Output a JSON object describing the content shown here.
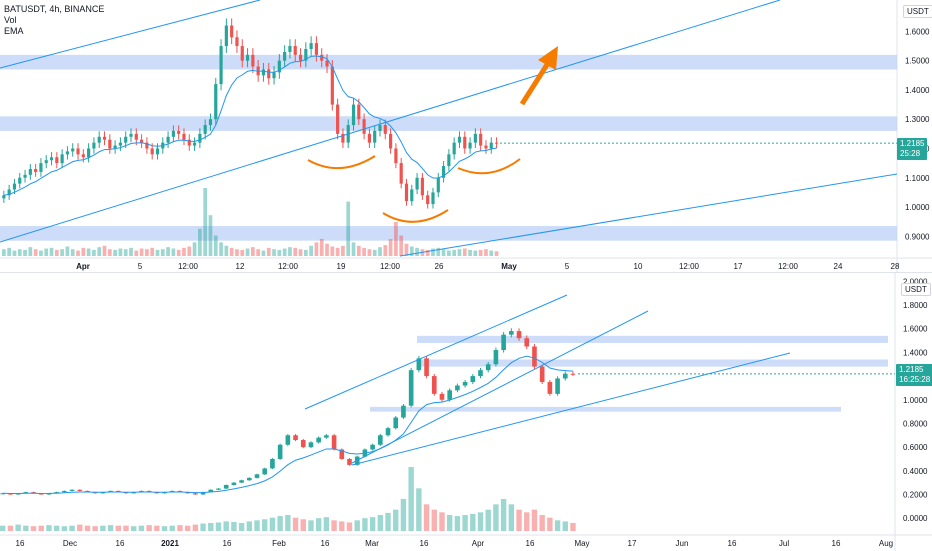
{
  "top_legend": {
    "symbol": "BATUSDT, 4h, BINANCE",
    "vol": "Vol",
    "ema": "EMA"
  },
  "top_axis_unit": "USDT",
  "bottom_axis_unit": "USDT",
  "top_price_tag": {
    "price": "1.2185",
    "timer": "25:28"
  },
  "bottom_price_tag": {
    "price": "1.2185",
    "timer": "16:25:28"
  },
  "colors": {
    "up": "#26a69a",
    "down": "#ef5350",
    "zone": "#bbd0f7",
    "trend": "#2196f3",
    "ema": "#2196f3",
    "arrow": "#f57c00",
    "pattern": "#f57c00"
  },
  "chart_data": [
    {
      "type": "candlestick",
      "title": "BATUSDT, 4h, BINANCE",
      "interval": "4h",
      "indicators": [
        "Vol",
        "EMA"
      ],
      "y_ticks": [
        "1.6000",
        "1.5000",
        "1.4000",
        "1.3000",
        "1.2000",
        "1.1000",
        "1.0000",
        "0.9000"
      ],
      "y_tick_values": [
        1.6,
        1.5,
        1.4,
        1.3,
        1.2,
        1.1,
        1.0,
        0.9
      ],
      "ylim": [
        0.86,
        1.68
      ],
      "x_ticks": [
        "Apr",
        "5",
        "12:00",
        "12",
        "12:00",
        "19",
        "12:00",
        "26",
        "May",
        "5",
        "10",
        "12:00",
        "17",
        "12:00",
        "24",
        "28"
      ],
      "x_tick_bold": [
        "Apr",
        "May"
      ],
      "last_price": 1.2185,
      "close_series": [
        1.04,
        1.06,
        1.08,
        1.1,
        1.11,
        1.13,
        1.12,
        1.15,
        1.16,
        1.17,
        1.15,
        1.18,
        1.19,
        1.2,
        1.18,
        1.17,
        1.2,
        1.22,
        1.24,
        1.23,
        1.2,
        1.21,
        1.22,
        1.24,
        1.25,
        1.23,
        1.22,
        1.2,
        1.18,
        1.2,
        1.22,
        1.24,
        1.26,
        1.25,
        1.23,
        1.21,
        1.22,
        1.25,
        1.28,
        1.3,
        1.42,
        1.55,
        1.62,
        1.58,
        1.55,
        1.5,
        1.52,
        1.48,
        1.45,
        1.47,
        1.44,
        1.46,
        1.5,
        1.53,
        1.55,
        1.52,
        1.5,
        1.54,
        1.56,
        1.52,
        1.5,
        1.48,
        1.35,
        1.25,
        1.22,
        1.28,
        1.35,
        1.3,
        1.25,
        1.22,
        1.26,
        1.28,
        1.25,
        1.2,
        1.15,
        1.08,
        1.02,
        1.06,
        1.1,
        1.04,
        1.01,
        1.05,
        1.1,
        1.14,
        1.18,
        1.22,
        1.24,
        1.2,
        1.22,
        1.25,
        1.21,
        1.2,
        1.22,
        1.2185
      ],
      "zones": [
        [
          1.47,
          1.52
        ],
        [
          1.26,
          1.31
        ],
        [
          0.885,
          0.935
        ]
      ],
      "volume_series": [
        1,
        1.2,
        0.8,
        1,
        0.9,
        1.3,
        1,
        0.8,
        1.1,
        1.2,
        0.9,
        1,
        1.4,
        1,
        0.8,
        1.2,
        1.1,
        0.9,
        1.3,
        1.5,
        1,
        0.9,
        1.1,
        1,
        1.2,
        0.8,
        1.1,
        1,
        1.2,
        0.9,
        1,
        1.3,
        1.1,
        0.9,
        1.2,
        1.4,
        2,
        4,
        10,
        6,
        3,
        2,
        1.5,
        1.2,
        1,
        0.9,
        1.1,
        1.3,
        1,
        0.8,
        1.2,
        1,
        0.9,
        1.1,
        1.3,
        1.2,
        1,
        0.9,
        1.5,
        2,
        2.5,
        1.8,
        1.4,
        1.2,
        1.5,
        8,
        2,
        1.5,
        1.2,
        1,
        0.9,
        1.3,
        1.6,
        2.5,
        5,
        3,
        1.8,
        1.4,
        1.2,
        1,
        0.9,
        1.1,
        1.2,
        1,
        0.8,
        0.9,
        1,
        1.1,
        0.9,
        0.8,
        0.9,
        1,
        0.8,
        0.7
      ]
    },
    {
      "type": "candlestick",
      "interval": "1D",
      "indicators": [
        "Vol",
        "EMA"
      ],
      "y_ticks": [
        "2.0000",
        "1.8000",
        "1.6000",
        "1.4000",
        "1.2000",
        "1.0000",
        "0.8000",
        "0.6000",
        "0.4000",
        "0.2000",
        "0.0000"
      ],
      "y_tick_values": [
        2.0,
        1.8,
        1.6,
        1.4,
        1.2,
        1.0,
        0.8,
        0.6,
        0.4,
        0.2,
        0.0
      ],
      "ylim": [
        -0.1,
        2.02
      ],
      "x_ticks": [
        "16",
        "Dec",
        "16",
        "2021",
        "16",
        "Feb",
        "16",
        "Mar",
        "16",
        "Apr",
        "16",
        "May",
        "17",
        "Jun",
        "16",
        "Jul",
        "16",
        "Aug"
      ],
      "x_tick_bold": [
        "2021"
      ],
      "last_price": 1.2185,
      "close_series": [
        0.21,
        0.2,
        0.21,
        0.22,
        0.21,
        0.2,
        0.21,
        0.22,
        0.23,
        0.24,
        0.23,
        0.22,
        0.21,
        0.22,
        0.23,
        0.22,
        0.21,
        0.22,
        0.23,
        0.22,
        0.21,
        0.22,
        0.23,
        0.22,
        0.21,
        0.2,
        0.22,
        0.24,
        0.25,
        0.28,
        0.3,
        0.32,
        0.34,
        0.37,
        0.42,
        0.5,
        0.62,
        0.7,
        0.66,
        0.6,
        0.64,
        0.68,
        0.7,
        0.58,
        0.5,
        0.45,
        0.52,
        0.58,
        0.62,
        0.7,
        0.76,
        0.85,
        0.95,
        1.25,
        1.35,
        1.2,
        1.05,
        1.0,
        1.08,
        1.12,
        1.15,
        1.2,
        1.25,
        1.3,
        1.42,
        1.55,
        1.58,
        1.52,
        1.45,
        1.28,
        1.15,
        1.05,
        1.18,
        1.22,
        1.2185
      ],
      "zones": [
        [
          1.48,
          1.54
        ],
        [
          1.28,
          1.34
        ],
        [
          0.9,
          0.94
        ]
      ],
      "volume_series": [
        1,
        1,
        1.2,
        1,
        0.9,
        1,
        1.1,
        1,
        0.9,
        1,
        1.2,
        1,
        0.9,
        1,
        1.1,
        1,
        1,
        0.9,
        1,
        1.1,
        1,
        0.9,
        1,
        1.1,
        1,
        1.2,
        1.4,
        1.5,
        1.6,
        1.8,
        1.7,
        1.5,
        1.8,
        2,
        2.2,
        2.5,
        2.8,
        3,
        2.5,
        2.2,
        2,
        2.4,
        2.6,
        2,
        1.8,
        1.6,
        2,
        2.4,
        2.6,
        3,
        3.4,
        4,
        6,
        12,
        8,
        5,
        4,
        3.5,
        3,
        2.8,
        3,
        3.2,
        3.5,
        4,
        5,
        6,
        5,
        4,
        3.5,
        4,
        3,
        2.5,
        2,
        1.8,
        1.5
      ]
    }
  ]
}
